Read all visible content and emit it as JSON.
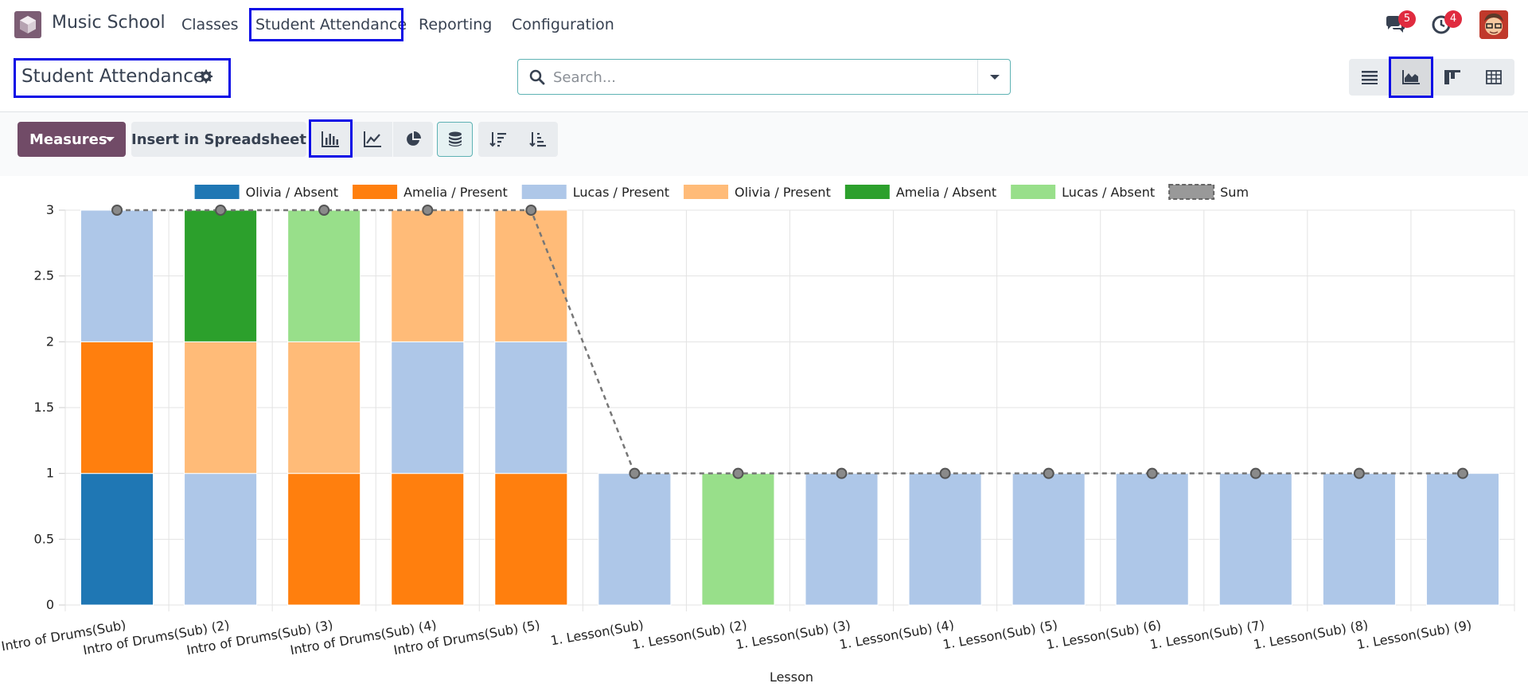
{
  "app": {
    "name": "Music School"
  },
  "nav": {
    "items": [
      {
        "label": "Classes"
      },
      {
        "label": "Student Attendance"
      },
      {
        "label": "Reporting"
      },
      {
        "label": "Configuration"
      }
    ]
  },
  "systray": {
    "messages_count": "5",
    "activities_count": "4"
  },
  "control": {
    "title": "Student Attendance",
    "search_placeholder": "Search..."
  },
  "toolbar": {
    "measures_label": "Measures",
    "insert_label": "Insert in Spreadsheet"
  },
  "colors": {
    "brand": "#714b67",
    "teal": "#5eb2b4",
    "highlight": "#0b0be6"
  },
  "icons": {
    "view_switcher": [
      "list-view-icon",
      "graph-view-icon",
      "kanban-view-icon",
      "pivot-view-icon"
    ],
    "graph_modes": [
      "bar-chart-icon",
      "line-chart-icon",
      "pie-chart-icon",
      "stacked-icon",
      "sort-descending-icon",
      "sort-ascending-icon"
    ]
  },
  "chart_data": {
    "type": "bar",
    "stacked": true,
    "xlabel": "Lesson",
    "ylabel": "",
    "ylim": [
      0,
      3
    ],
    "yticks": [
      "0",
      "0.5",
      "1",
      "1.5",
      "2",
      "2.5",
      "3"
    ],
    "legend_position": "top",
    "grid": true,
    "categories": [
      "Intro of Drums(Sub)",
      "Intro of Drums(Sub) (2)",
      "Intro of Drums(Sub) (3)",
      "Intro of Drums(Sub) (4)",
      "Intro of Drums(Sub) (5)",
      "1. Lesson(Sub)",
      "1. Lesson(Sub) (2)",
      "1. Lesson(Sub) (3)",
      "1. Lesson(Sub) (4)",
      "1. Lesson(Sub) (5)",
      "1. Lesson(Sub) (6)",
      "1. Lesson(Sub) (7)",
      "1. Lesson(Sub) (8)",
      "1. Lesson(Sub) (9)"
    ],
    "series": [
      {
        "name": "Olivia / Absent",
        "color": "#1f77b4",
        "values": [
          1,
          0,
          0,
          0,
          0,
          0,
          0,
          0,
          0,
          0,
          0,
          0,
          0,
          0
        ]
      },
      {
        "name": "Amelia / Present",
        "color": "#ff7f0e",
        "values": [
          1,
          0,
          1,
          1,
          1,
          0,
          0,
          0,
          0,
          0,
          0,
          0,
          0,
          0
        ]
      },
      {
        "name": "Lucas / Present",
        "color": "#aec7e8",
        "values": [
          1,
          1,
          0,
          1,
          1,
          1,
          0,
          1,
          1,
          1,
          1,
          1,
          1,
          1
        ]
      },
      {
        "name": "Olivia / Present",
        "color": "#ffbb78",
        "values": [
          0,
          1,
          1,
          1,
          1,
          0,
          0,
          0,
          0,
          0,
          0,
          0,
          0,
          0
        ]
      },
      {
        "name": "Amelia / Absent",
        "color": "#2ca02c",
        "values": [
          0,
          1,
          0,
          0,
          0,
          0,
          0,
          0,
          0,
          0,
          0,
          0,
          0,
          0
        ]
      },
      {
        "name": "Lucas / Absent",
        "color": "#98df8a",
        "values": [
          0,
          0,
          1,
          0,
          0,
          0,
          1,
          0,
          0,
          0,
          0,
          0,
          0,
          0
        ]
      }
    ],
    "sum": {
      "name": "Sum",
      "color": "#777777",
      "values": [
        3,
        3,
        3,
        3,
        3,
        1,
        1,
        1,
        1,
        1,
        1,
        1,
        1,
        1
      ]
    }
  }
}
